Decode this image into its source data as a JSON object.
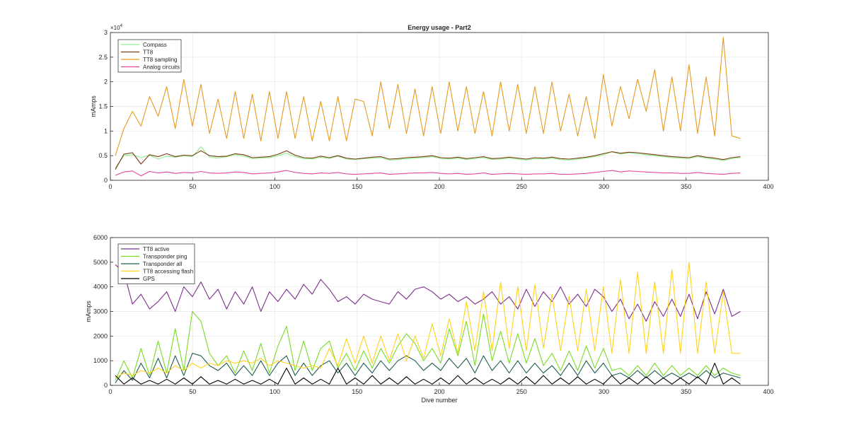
{
  "chart_data": [
    {
      "type": "line",
      "title": "Energy usage - Part2",
      "xlabel": "",
      "ylabel": "mAmps",
      "xlim": [
        0,
        400
      ],
      "ylim": [
        0,
        30000
      ],
      "xticks": [
        "0",
        "50",
        "100",
        "150",
        "200",
        "250",
        "300",
        "350",
        "400"
      ],
      "yticks": [
        "0",
        "0.5",
        "1",
        "1.5",
        "2",
        "2.5",
        "3"
      ],
      "y_exponent": "×10",
      "y_exponent_power": "4",
      "grid": true,
      "legend": "top-left",
      "x_range": [
        3,
        383
      ],
      "series": [
        {
          "name": "Compass",
          "color": "#90ee90",
          "values": [
            2500,
            5000,
            5200,
            4600,
            5100,
            4300,
            4900,
            4700,
            5000,
            4800,
            6800,
            4700,
            4500,
            4800,
            5200,
            4900,
            4400,
            4500,
            4600,
            5000,
            5500,
            4800,
            4400,
            4300,
            4700,
            4400,
            4900,
            4300,
            4200,
            4400,
            4500,
            4600,
            4100,
            4200,
            4400,
            4500,
            4600,
            4800,
            4400,
            4300,
            4500,
            4200,
            4400,
            4600,
            4200,
            4300,
            4500,
            4300,
            4100,
            4400,
            4300,
            4500,
            4200,
            4100,
            4300,
            4500,
            4800,
            5200,
            5800,
            5300,
            5600,
            5400,
            5200,
            5000,
            4800,
            4600,
            4500,
            4400,
            4800,
            4500,
            4300,
            4000,
            4400,
            4600
          ]
        },
        {
          "name": "TT8",
          "color": "#7a3b10",
          "values": [
            2200,
            5300,
            5600,
            3300,
            5200,
            4800,
            5400,
            4800,
            5100,
            5000,
            6000,
            5000,
            4800,
            4900,
            5400,
            5200,
            4600,
            4700,
            4800,
            5300,
            6000,
            5100,
            4600,
            4500,
            4900,
            4600,
            5000,
            4500,
            4300,
            4500,
            4700,
            4800,
            4300,
            4400,
            4600,
            4700,
            4800,
            5000,
            4600,
            4500,
            4700,
            4400,
            4600,
            4800,
            4400,
            4500,
            4700,
            4500,
            4300,
            4600,
            4500,
            4700,
            4400,
            4300,
            4500,
            4700,
            5000,
            5400,
            5800,
            5500,
            5700,
            5600,
            5400,
            5200,
            5000,
            4800,
            4700,
            4600,
            5000,
            4700,
            4500,
            4200,
            4600,
            4800
          ]
        },
        {
          "name": "TT8 sampling",
          "color": "#e69a1f",
          "values": [
            5000,
            10500,
            14000,
            11000,
            17000,
            13000,
            19000,
            10500,
            20500,
            11000,
            19500,
            9500,
            16500,
            8500,
            18000,
            8500,
            17500,
            8000,
            18000,
            8500,
            18000,
            8500,
            17000,
            8000,
            16000,
            8000,
            17000,
            8000,
            16500,
            16000,
            9000,
            20000,
            10500,
            19500,
            9500,
            18500,
            9000,
            19000,
            9500,
            20000,
            10000,
            19000,
            9500,
            18000,
            9000,
            20000,
            10000,
            19500,
            9500,
            19000,
            9500,
            20000,
            10000,
            17500,
            9000,
            17000,
            8500,
            21500,
            11000,
            19000,
            12500,
            20500,
            14000,
            22500,
            10000,
            21000,
            10000,
            23500,
            9500,
            21000,
            9000,
            29000,
            9000,
            8500
          ]
        },
        {
          "name": "Analog circuits",
          "color": "#e2489a",
          "values": [
            1000,
            1700,
            1900,
            900,
            1800,
            1500,
            1700,
            1400,
            1600,
            1500,
            1800,
            1500,
            1400,
            1500,
            1700,
            1600,
            1300,
            1400,
            1500,
            1700,
            2000,
            1600,
            1400,
            1300,
            1500,
            1400,
            1600,
            1300,
            1200,
            1300,
            1400,
            1500,
            1200,
            1300,
            1400,
            1500,
            1500,
            1600,
            1400,
            1300,
            1400,
            1200,
            1300,
            1500,
            1200,
            1300,
            1400,
            1300,
            1200,
            1300,
            1300,
            1400,
            1200,
            1200,
            1300,
            1400,
            1600,
            1800,
            2000,
            1700,
            1900,
            1800,
            1700,
            1600,
            1500,
            1500,
            1400,
            1400,
            1600,
            1400,
            1300,
            1200,
            1400,
            1500
          ]
        }
      ]
    },
    {
      "type": "line",
      "title": "",
      "xlabel": "Dive number",
      "ylabel": "mAmps",
      "xlim": [
        0,
        400
      ],
      "ylim": [
        0,
        6000
      ],
      "xticks": [
        "0",
        "50",
        "100",
        "150",
        "200",
        "250",
        "300",
        "350",
        "400"
      ],
      "yticks": [
        "0",
        "1000",
        "2000",
        "3000",
        "4000",
        "5000",
        "6000"
      ],
      "grid": true,
      "legend": "top-left",
      "x_range": [
        3,
        383
      ],
      "series": [
        {
          "name": "TT8 active",
          "color": "#7e2f8e",
          "values": [
            4900,
            4600,
            3300,
            3700,
            3100,
            3400,
            3800,
            3000,
            4000,
            3600,
            4200,
            3500,
            3900,
            3100,
            3800,
            3300,
            4000,
            3000,
            3800,
            3400,
            3900,
            3500,
            4100,
            3700,
            4300,
            3900,
            3400,
            3600,
            3300,
            3700,
            3500,
            3400,
            3300,
            3800,
            3500,
            3900,
            4000,
            3800,
            3500,
            3700,
            3400,
            3600,
            3300,
            3500,
            3800,
            3300,
            3600,
            3100,
            3900,
            3200,
            3800,
            3400,
            4000,
            3300,
            3700,
            3200,
            3900,
            3600,
            3000,
            3500,
            2700,
            3300,
            2600,
            3400,
            2800,
            3500,
            2800,
            3700,
            2700,
            3800,
            2900,
            3900,
            2800,
            3000
          ]
        },
        {
          "name": "Transponder ping",
          "color": "#77dd22",
          "values": [
            200,
            1000,
            300,
            1500,
            400,
            1800,
            500,
            2300,
            600,
            3000,
            2600,
            1300,
            800,
            1200,
            500,
            1400,
            600,
            1700,
            500,
            1600,
            2400,
            600,
            1800,
            600,
            1500,
            1800,
            700,
            1300,
            600,
            1400,
            700,
            1500,
            900,
            1600,
            2100,
            1700,
            1000,
            1500,
            900,
            2300,
            1200,
            2600,
            800,
            2900,
            1000,
            2200,
            900,
            2100,
            900,
            1900,
            800,
            1300,
            600,
            1400,
            600,
            1600,
            700,
            1500,
            600,
            700,
            400,
            800,
            400,
            900,
            400,
            800,
            400,
            700,
            400,
            800,
            400,
            700,
            500,
            400
          ]
        },
        {
          "name": "Transponder all",
          "color": "#1f5f4f",
          "values": [
            100,
            600,
            200,
            900,
            300,
            1100,
            300,
            1200,
            400,
            1300,
            1200,
            800,
            600,
            900,
            400,
            800,
            400,
            1000,
            400,
            900,
            1200,
            400,
            900,
            400,
            800,
            1000,
            500,
            900,
            400,
            900,
            500,
            1000,
            600,
            1000,
            1200,
            1000,
            600,
            900,
            600,
            1100,
            700,
            1100,
            500,
            1200,
            600,
            1000,
            500,
            1000,
            500,
            900,
            500,
            800,
            400,
            900,
            400,
            1000,
            500,
            900,
            400,
            500,
            300,
            600,
            300,
            600,
            300,
            500,
            300,
            500,
            300,
            600,
            300,
            500,
            400,
            300
          ]
        },
        {
          "name": "TT8 accessing flash",
          "color": "#ffd21a",
          "values": [
            300,
            500,
            400,
            600,
            500,
            700,
            500,
            800,
            600,
            900,
            700,
            900,
            800,
            1000,
            900,
            1000,
            900,
            1100,
            800,
            1000,
            900,
            800,
            700,
            800,
            700,
            1500,
            800,
            1900,
            900,
            2000,
            900,
            2000,
            1000,
            2100,
            1000,
            2000,
            1100,
            2500,
            1200,
            2700,
            1300,
            3400,
            1400,
            3800,
            1400,
            4200,
            1500,
            4000,
            1400,
            4100,
            1500,
            3700,
            1400,
            3600,
            1400,
            3900,
            1400,
            4000,
            1300,
            4300,
            1300,
            4600,
            1300,
            4200,
            1300,
            4700,
            1300,
            5000,
            1300,
            4200,
            1300,
            3800,
            1300,
            1300
          ]
        },
        {
          "name": "GPS",
          "color": "#000000",
          "values": [
            400,
            50,
            300,
            50,
            200,
            50,
            250,
            50,
            300,
            50,
            350,
            50,
            200,
            50,
            250,
            50,
            200,
            50,
            250,
            50,
            700,
            50,
            300,
            50,
            250,
            50,
            700,
            50,
            300,
            50,
            400,
            50,
            300,
            50,
            350,
            50,
            250,
            50,
            300,
            50,
            400,
            50,
            300,
            50,
            250,
            50,
            300,
            50,
            350,
            50,
            400,
            50,
            300,
            50,
            350,
            50,
            250,
            50,
            400,
            50,
            300,
            50,
            350,
            50,
            300,
            50,
            300,
            50,
            350,
            50,
            900,
            50,
            300,
            50
          ]
        }
      ]
    }
  ]
}
